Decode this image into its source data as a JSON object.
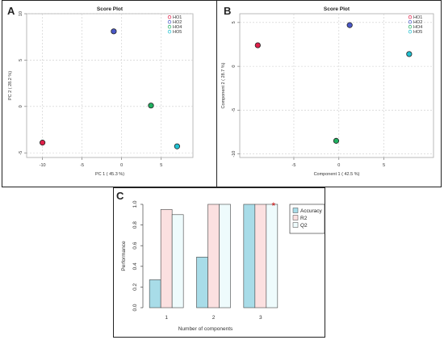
{
  "panels": {
    "a": "A",
    "b": "B",
    "c": "C"
  },
  "chart_data": [
    {
      "type": "scatter",
      "title": "Score Plot",
      "xlabel": "PC 1 ( 45.3 %)",
      "ylabel": "PC 2 ( 28.2 %)",
      "xlim": [
        -12,
        9
      ],
      "ylim": [
        -5.5,
        10
      ],
      "xticks": [
        -10,
        -5,
        0,
        5
      ],
      "yticks": [
        -5,
        0,
        5,
        10
      ],
      "grid": true,
      "legend_position": "top-right",
      "series": [
        {
          "name": "HO1",
          "color": "#e0204a",
          "points": [
            [
              -10.0,
              -3.9
            ]
          ]
        },
        {
          "name": "HO2",
          "color": "#4a58c8",
          "points": [
            [
              -1.0,
              8.1
            ]
          ]
        },
        {
          "name": "HO4",
          "color": "#20b060",
          "points": [
            [
              3.7,
              0.1
            ]
          ]
        },
        {
          "name": "HO5",
          "color": "#20c0d0",
          "points": [
            [
              7.0,
              -4.3
            ]
          ]
        }
      ]
    },
    {
      "type": "scatter",
      "title": "Score Plot",
      "xlabel": "Component 1 ( 42.5 %)",
      "ylabel": "Component 2 ( 28.7 %)",
      "xlim": [
        -11,
        10.5
      ],
      "ylim": [
        -10.4,
        6
      ],
      "xticks": [
        -5,
        0,
        5
      ],
      "yticks": [
        -10,
        -5,
        0,
        5
      ],
      "grid": true,
      "legend_position": "top-right",
      "series": [
        {
          "name": "HO1",
          "color": "#e0204a",
          "points": [
            [
              -9.0,
              2.4
            ]
          ]
        },
        {
          "name": "HO2",
          "color": "#4a58c8",
          "points": [
            [
              1.2,
              4.7
            ]
          ]
        },
        {
          "name": "HO4",
          "color": "#20b060",
          "points": [
            [
              -0.3,
              -8.5
            ]
          ]
        },
        {
          "name": "HO5",
          "color": "#20c0d0",
          "points": [
            [
              7.8,
              1.4
            ]
          ]
        }
      ]
    },
    {
      "type": "bar",
      "xlabel": "Number of components",
      "ylabel": "Performance",
      "categories": [
        "1",
        "2",
        "3"
      ],
      "ylim": [
        0,
        1.0
      ],
      "yticks": [
        "0.0",
        "0.2",
        "0.4",
        "0.6",
        "0.8",
        "1.0"
      ],
      "legend_position": "top-right",
      "annotation": {
        "text": "*",
        "category": "3",
        "series": "Q2",
        "color": "#d01010"
      },
      "series": [
        {
          "name": "Accuracy",
          "color": "#a8dce8",
          "values": [
            0.27,
            0.49,
            1.0
          ]
        },
        {
          "name": "R2",
          "color": "#fbe0e0",
          "values": [
            0.95,
            1.0,
            1.0
          ]
        },
        {
          "name": "Q2",
          "color": "#eefbfc",
          "values": [
            0.9,
            1.0,
            1.0
          ]
        }
      ]
    }
  ]
}
